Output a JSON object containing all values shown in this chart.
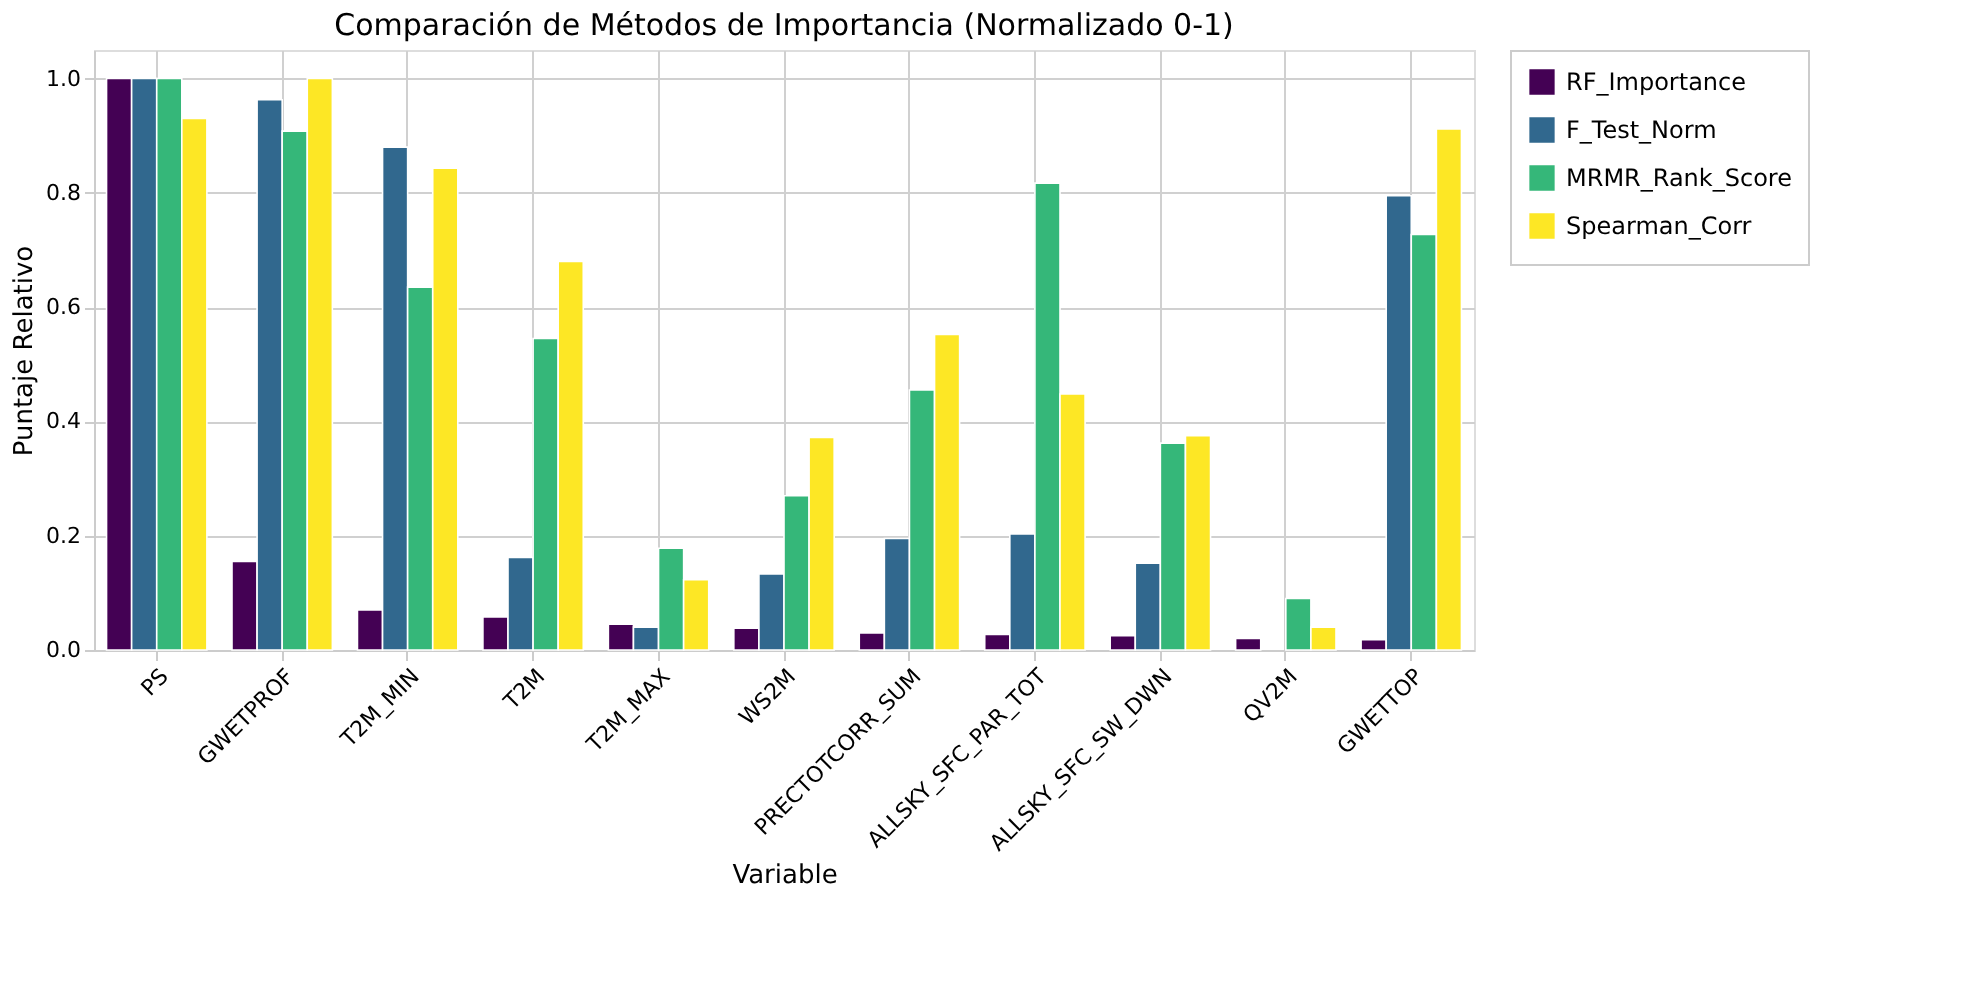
{
  "chart_data": {
    "type": "bar",
    "title": "Comparación de Métodos de Importancia (Normalizado 0-1)",
    "xlabel": "Variable",
    "ylabel": "Puntaje Relativo",
    "categories": [
      "PS",
      "GWETPROF",
      "T2M_MIN",
      "T2M",
      "T2M_MAX",
      "WS2M",
      "PRECTOTCORR_SUM",
      "ALLSKY_SFC_PAR_TOT",
      "ALLSKY_SFC_SW_DWN",
      "QV2M",
      "GWETTOP"
    ],
    "series": [
      {
        "name": "RF_Importance",
        "color": "#440154",
        "values": [
          1.0,
          0.155,
          0.07,
          0.058,
          0.045,
          0.038,
          0.03,
          0.027,
          0.025,
          0.02,
          0.018
        ]
      },
      {
        "name": "F_Test_Norm",
        "color": "#31688e",
        "values": [
          1.0,
          0.963,
          0.88,
          0.162,
          0.04,
          0.133,
          0.195,
          0.203,
          0.152,
          null,
          0.795
        ]
      },
      {
        "name": "MRMR_Rank_Score",
        "color": "#35b779",
        "values": [
          1.0,
          0.908,
          0.635,
          0.545,
          0.178,
          0.27,
          0.455,
          0.817,
          0.362,
          0.09,
          0.727
        ]
      },
      {
        "name": "Spearman_Corr",
        "color": "#fde725",
        "values": [
          0.93,
          1.0,
          0.843,
          0.68,
          0.123,
          0.372,
          0.552,
          0.448,
          0.375,
          0.04,
          0.912
        ]
      }
    ],
    "ylim": [
      0,
      1.05
    ],
    "yticks": [
      {
        "value": 0,
        "label": "0.0"
      },
      {
        "value": 0.2,
        "label": "0.2"
      },
      {
        "value": 0.4,
        "label": "0.4"
      },
      {
        "value": 0.6,
        "label": "0.6"
      },
      {
        "value": 0.8,
        "label": "0.8"
      },
      {
        "value": 1.0,
        "label": "1.0"
      }
    ],
    "grid": true,
    "legend": "top right"
  }
}
